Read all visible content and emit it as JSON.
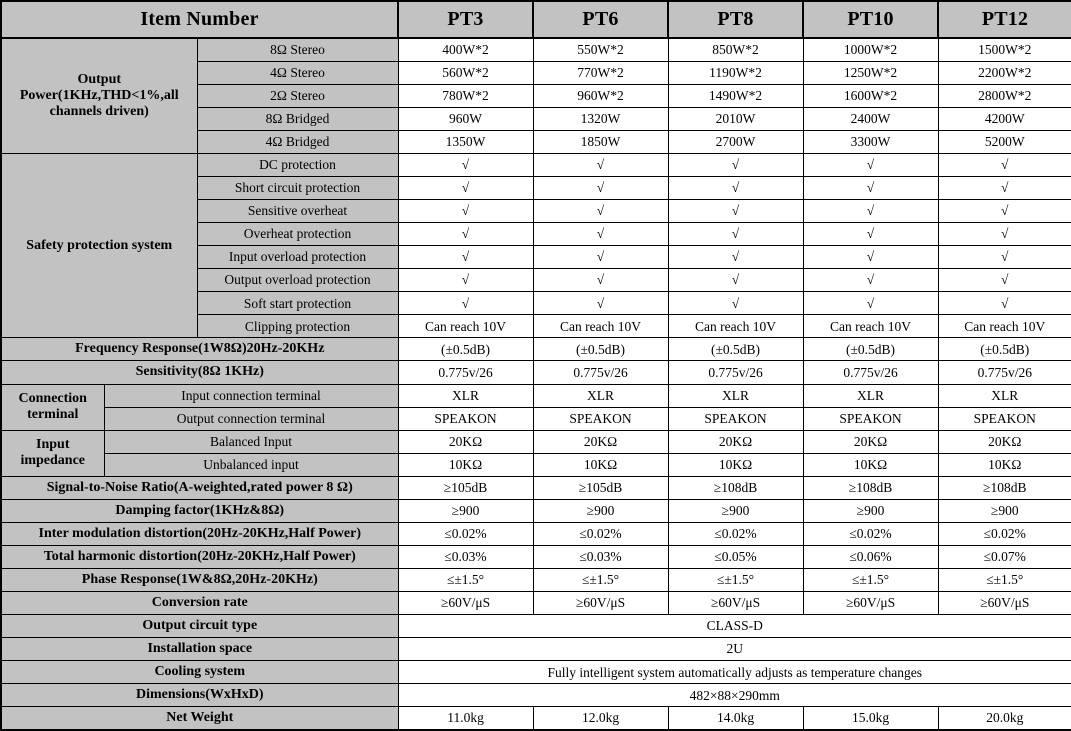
{
  "colors": {
    "panel_bg": "#c2c2c2",
    "cell_bg": "#ffffff",
    "border": "#000000",
    "text": "#000000"
  },
  "table": {
    "rows": [
      {
        "cells": [
          {
            "text": "Item Number",
            "colspan": 3,
            "kind": "header",
            "name": "header-item-number"
          },
          {
            "text": "PT3",
            "kind": "header",
            "model": true,
            "name": "header-model-pt3"
          },
          {
            "text": "PT6",
            "kind": "header",
            "model": true,
            "name": "header-model-pt6"
          },
          {
            "text": "PT8",
            "kind": "header",
            "model": true,
            "name": "header-model-pt8"
          },
          {
            "text": "PT10",
            "kind": "header",
            "model": true,
            "name": "header-model-pt10"
          },
          {
            "text": "PT12",
            "kind": "header",
            "model": true,
            "name": "header-model-pt12"
          }
        ]
      },
      {
        "cells": [
          {
            "text": "Output Power(1KHz,THD<1%,all channels driven)",
            "colspan": 2,
            "rowspan": 5,
            "kind": "label",
            "name": "group-label-output-power"
          },
          {
            "text": "8Ω Stereo",
            "kind": "sublabel"
          },
          {
            "text": "400W*2"
          },
          {
            "text": "550W*2"
          },
          {
            "text": "850W*2"
          },
          {
            "text": "1000W*2"
          },
          {
            "text": "1500W*2"
          }
        ]
      },
      {
        "cells": [
          {
            "text": "4Ω Stereo",
            "kind": "sublabel"
          },
          {
            "text": "560W*2"
          },
          {
            "text": "770W*2"
          },
          {
            "text": "1190W*2"
          },
          {
            "text": "1250W*2"
          },
          {
            "text": "2200W*2"
          }
        ]
      },
      {
        "cells": [
          {
            "text": "2Ω Stereo",
            "kind": "sublabel"
          },
          {
            "text": "780W*2"
          },
          {
            "text": "960W*2"
          },
          {
            "text": "1490W*2"
          },
          {
            "text": "1600W*2"
          },
          {
            "text": "2800W*2"
          }
        ]
      },
      {
        "cells": [
          {
            "text": "8Ω Bridged",
            "kind": "sublabel"
          },
          {
            "text": "960W"
          },
          {
            "text": "1320W"
          },
          {
            "text": "2010W"
          },
          {
            "text": "2400W"
          },
          {
            "text": "4200W"
          }
        ]
      },
      {
        "cells": [
          {
            "text": "4Ω Bridged",
            "kind": "sublabel"
          },
          {
            "text": "1350W"
          },
          {
            "text": "1850W"
          },
          {
            "text": "2700W"
          },
          {
            "text": "3300W"
          },
          {
            "text": "5200W"
          }
        ]
      },
      {
        "cells": [
          {
            "text": "Safety protection system",
            "colspan": 2,
            "rowspan": 8,
            "kind": "label",
            "name": "group-label-safety-protection"
          },
          {
            "text": "DC protection",
            "kind": "sublabel"
          },
          {
            "text": "√"
          },
          {
            "text": "√"
          },
          {
            "text": "√"
          },
          {
            "text": "√"
          },
          {
            "text": "√"
          }
        ]
      },
      {
        "cells": [
          {
            "text": "Short circuit protection",
            "kind": "sublabel"
          },
          {
            "text": "√"
          },
          {
            "text": "√"
          },
          {
            "text": "√"
          },
          {
            "text": "√"
          },
          {
            "text": "√"
          }
        ]
      },
      {
        "cells": [
          {
            "text": "Sensitive overheat",
            "kind": "sublabel"
          },
          {
            "text": "√"
          },
          {
            "text": "√"
          },
          {
            "text": "√"
          },
          {
            "text": "√"
          },
          {
            "text": "√"
          }
        ]
      },
      {
        "cells": [
          {
            "text": "Overheat protection",
            "kind": "sublabel"
          },
          {
            "text": "√"
          },
          {
            "text": "√"
          },
          {
            "text": "√"
          },
          {
            "text": "√"
          },
          {
            "text": "√"
          }
        ]
      },
      {
        "cells": [
          {
            "text": "Input overload protection",
            "kind": "sublabel"
          },
          {
            "text": "√"
          },
          {
            "text": "√"
          },
          {
            "text": "√"
          },
          {
            "text": "√"
          },
          {
            "text": "√"
          }
        ]
      },
      {
        "cells": [
          {
            "text": "Output overload protection",
            "kind": "sublabel"
          },
          {
            "text": "√"
          },
          {
            "text": "√"
          },
          {
            "text": "√"
          },
          {
            "text": "√"
          },
          {
            "text": "√"
          }
        ]
      },
      {
        "cells": [
          {
            "text": "Soft start protection",
            "kind": "sublabel"
          },
          {
            "text": "√"
          },
          {
            "text": "√"
          },
          {
            "text": "√"
          },
          {
            "text": "√"
          },
          {
            "text": "√"
          }
        ]
      },
      {
        "cells": [
          {
            "text": "Clipping protection",
            "kind": "sublabel"
          },
          {
            "text": "Can reach 10V"
          },
          {
            "text": "Can reach 10V"
          },
          {
            "text": "Can reach 10V"
          },
          {
            "text": "Can reach 10V"
          },
          {
            "text": "Can reach 10V"
          }
        ]
      },
      {
        "cells": [
          {
            "text": "Frequency Response(1W8Ω)20Hz-20KHz",
            "colspan": 3,
            "kind": "label",
            "name": "row-label-frequency-response"
          },
          {
            "text": "(±0.5dB)"
          },
          {
            "text": "(±0.5dB)"
          },
          {
            "text": "(±0.5dB)"
          },
          {
            "text": "(±0.5dB)"
          },
          {
            "text": "(±0.5dB)"
          }
        ]
      },
      {
        "cells": [
          {
            "text": "Sensitivity(8Ω 1KHz)",
            "colspan": 3,
            "kind": "label",
            "name": "row-label-sensitivity"
          },
          {
            "text": "0.775v/26"
          },
          {
            "text": "0.775v/26"
          },
          {
            "text": "0.775v/26"
          },
          {
            "text": "0.775v/26"
          },
          {
            "text": "0.775v/26"
          }
        ]
      },
      {
        "cells": [
          {
            "text": "Connection terminal",
            "rowspan": 2,
            "kind": "label",
            "name": "group-label-connection-terminal"
          },
          {
            "text": "Input connection terminal",
            "colspan": 2,
            "kind": "sublabel"
          },
          {
            "text": "XLR"
          },
          {
            "text": "XLR"
          },
          {
            "text": "XLR"
          },
          {
            "text": "XLR"
          },
          {
            "text": "XLR"
          }
        ]
      },
      {
        "cells": [
          {
            "text": "Output connection terminal",
            "colspan": 2,
            "kind": "sublabel"
          },
          {
            "text": "SPEAKON"
          },
          {
            "text": "SPEAKON"
          },
          {
            "text": "SPEAKON"
          },
          {
            "text": "SPEAKON"
          },
          {
            "text": "SPEAKON"
          }
        ]
      },
      {
        "cells": [
          {
            "text": "Input impedance",
            "rowspan": 2,
            "kind": "label",
            "name": "group-label-input-impedance"
          },
          {
            "text": "Balanced Input",
            "colspan": 2,
            "kind": "sublabel"
          },
          {
            "text": "20KΩ"
          },
          {
            "text": "20KΩ"
          },
          {
            "text": "20KΩ"
          },
          {
            "text": "20KΩ"
          },
          {
            "text": "20KΩ"
          }
        ]
      },
      {
        "cells": [
          {
            "text": "Unbalanced input",
            "colspan": 2,
            "kind": "sublabel"
          },
          {
            "text": "10KΩ"
          },
          {
            "text": "10KΩ"
          },
          {
            "text": "10KΩ"
          },
          {
            "text": "10KΩ"
          },
          {
            "text": "10KΩ"
          }
        ]
      },
      {
        "cells": [
          {
            "text": "Signal-to-Noise Ratio(A-weighted,rated power 8 Ω)",
            "colspan": 3,
            "kind": "label",
            "name": "row-label-signal-to-noise"
          },
          {
            "text": "≥105dB"
          },
          {
            "text": "≥105dB"
          },
          {
            "text": "≥108dB"
          },
          {
            "text": "≥108dB"
          },
          {
            "text": "≥108dB"
          }
        ]
      },
      {
        "cells": [
          {
            "text": "Damping factor(1KHz&8Ω)",
            "colspan": 3,
            "kind": "label",
            "name": "row-label-damping-factor"
          },
          {
            "text": "≥900"
          },
          {
            "text": "≥900"
          },
          {
            "text": "≥900"
          },
          {
            "text": "≥900"
          },
          {
            "text": "≥900"
          }
        ]
      },
      {
        "cells": [
          {
            "text": "Inter modulation distortion(20Hz-20KHz,Half Power)",
            "colspan": 3,
            "kind": "label",
            "name": "row-label-inter-modulation-distortion"
          },
          {
            "text": "≤0.02%"
          },
          {
            "text": "≤0.02%"
          },
          {
            "text": "≤0.02%"
          },
          {
            "text": "≤0.02%"
          },
          {
            "text": "≤0.02%"
          }
        ]
      },
      {
        "cells": [
          {
            "text": "Total harmonic distortion(20Hz-20KHz,Half Power)",
            "colspan": 3,
            "kind": "label",
            "name": "row-label-total-harmonic-distortion"
          },
          {
            "text": "≤0.03%"
          },
          {
            "text": "≤0.03%"
          },
          {
            "text": "≤0.05%"
          },
          {
            "text": "≤0.06%"
          },
          {
            "text": "≤0.07%"
          }
        ]
      },
      {
        "cells": [
          {
            "text": "Phase Response(1W&8Ω,20Hz-20KHz)",
            "colspan": 3,
            "kind": "label",
            "name": "row-label-phase-response"
          },
          {
            "text": "≤±1.5°"
          },
          {
            "text": "≤±1.5°"
          },
          {
            "text": "≤±1.5°"
          },
          {
            "text": "≤±1.5°"
          },
          {
            "text": "≤±1.5°"
          }
        ]
      },
      {
        "cells": [
          {
            "text": "Conversion rate",
            "colspan": 3,
            "kind": "label",
            "name": "row-label-conversion-rate"
          },
          {
            "text": "≥60V/μS"
          },
          {
            "text": "≥60V/μS"
          },
          {
            "text": "≥60V/μS"
          },
          {
            "text": "≥60V/μS"
          },
          {
            "text": "≥60V/μS"
          }
        ]
      },
      {
        "cells": [
          {
            "text": "Output circuit type",
            "colspan": 3,
            "kind": "label",
            "name": "row-label-output-circuit-type"
          },
          {
            "text": "CLASS-D",
            "colspan": 5
          }
        ]
      },
      {
        "cells": [
          {
            "text": "Installation space",
            "colspan": 3,
            "kind": "label",
            "name": "row-label-installation-space"
          },
          {
            "text": "2U",
            "colspan": 5
          }
        ]
      },
      {
        "cells": [
          {
            "text": "Cooling system",
            "colspan": 3,
            "kind": "label",
            "name": "row-label-cooling-system"
          },
          {
            "text": "Fully intelligent system automatically adjusts as temperature changes",
            "colspan": 5
          }
        ]
      },
      {
        "cells": [
          {
            "text": "Dimensions(WxHxD)",
            "colspan": 3,
            "kind": "label",
            "name": "row-label-dimensions"
          },
          {
            "text": "482×88×290mm",
            "colspan": 5
          }
        ]
      },
      {
        "cells": [
          {
            "text": "Net Weight",
            "colspan": 3,
            "kind": "label",
            "name": "row-label-net-weight"
          },
          {
            "text": "11.0kg"
          },
          {
            "text": "12.0kg"
          },
          {
            "text": "14.0kg"
          },
          {
            "text": "15.0kg"
          },
          {
            "text": "20.0kg"
          }
        ]
      }
    ]
  }
}
